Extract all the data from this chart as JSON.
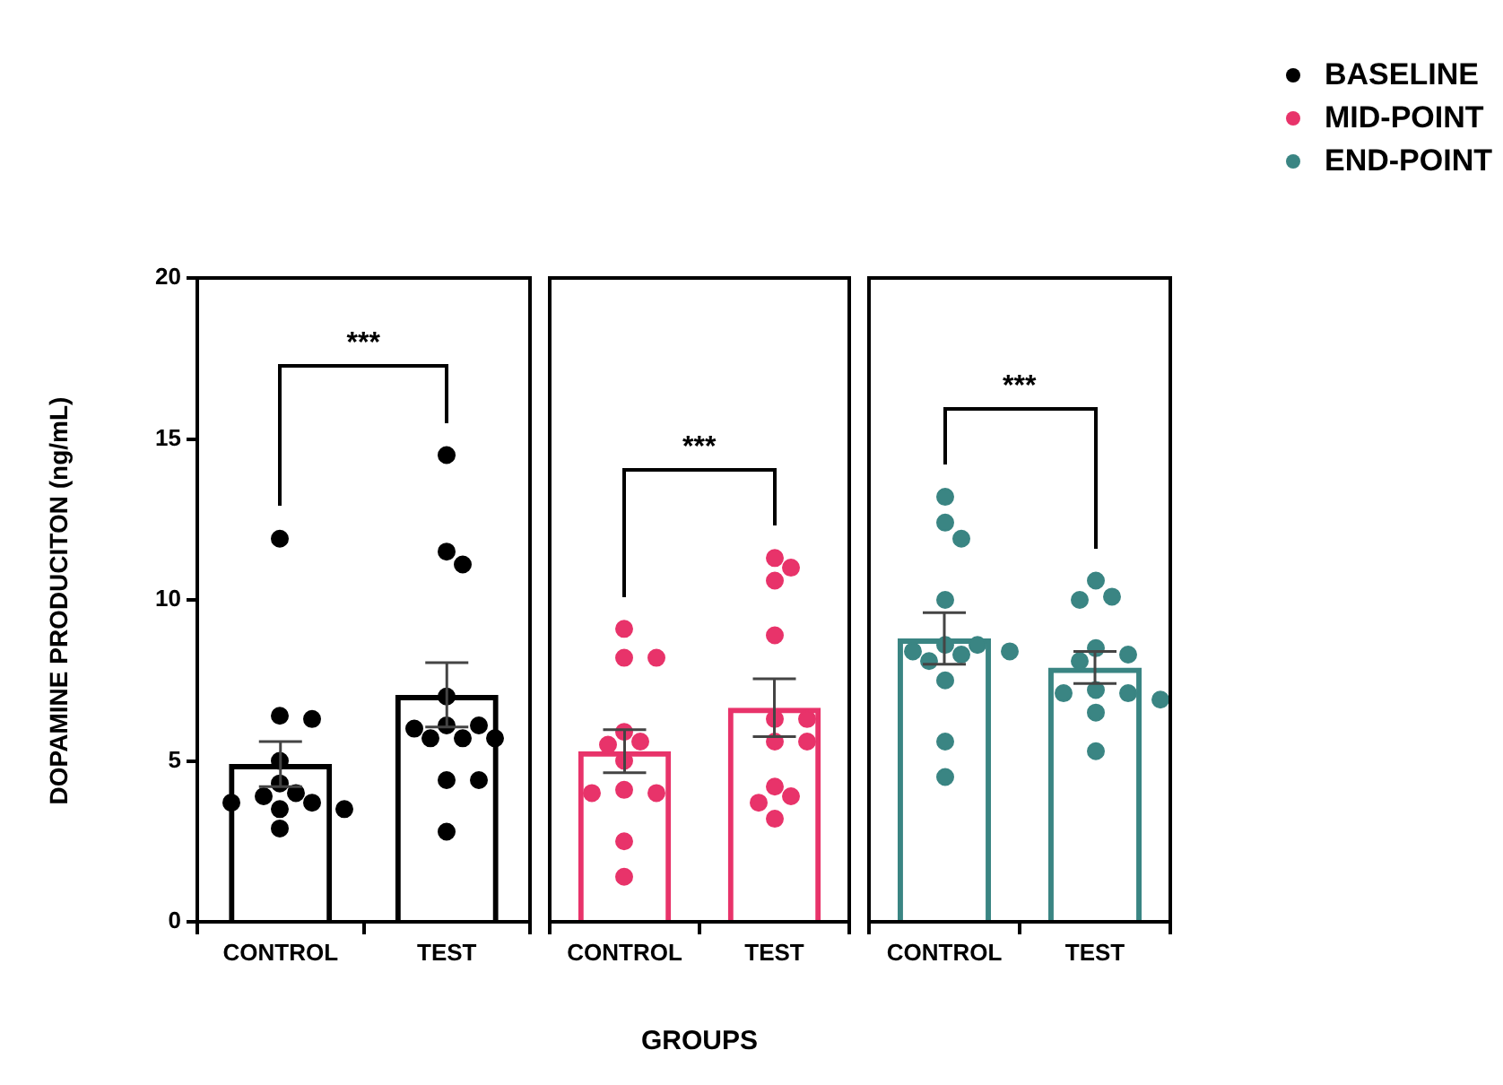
{
  "chart_data": [
    {
      "type": "bar",
      "ylabel": "DOPAMINE PRODUCITON (ng/mL)",
      "categories": [
        "CONTROL",
        "TEST"
      ],
      "ylim": [
        0,
        20
      ],
      "yticks": [
        0,
        5,
        10,
        15,
        20
      ],
      "legend": "top right",
      "annotations": [
        "***"
      ],
      "series": [
        {
          "color": "#000000",
          "values": [
            4.9,
            7.05
          ],
          "errors": [
            0.7,
            1.0
          ]
        },
        {
          "type": "scatter",
          "name": "BASELINE",
          "color": "#000000",
          "marker": "circle",
          "x": [
            "CONTROL",
            "CONTROL",
            "CONTROL",
            "CONTROL",
            "CONTROL",
            "CONTROL",
            "CONTROL",
            "CONTROL",
            "CONTROL",
            "CONTROL",
            "CONTROL",
            "CONTROL",
            "TEST",
            "TEST",
            "TEST",
            "TEST",
            "TEST",
            "TEST",
            "TEST",
            "TEST",
            "TEST",
            "TEST",
            "TEST",
            "TEST",
            "TEST"
          ],
          "values": [
            11.9,
            6.3,
            6.4,
            5.0,
            4.3,
            4.0,
            3.9,
            3.7,
            3.7,
            3.5,
            3.5,
            2.9,
            14.5,
            11.5,
            11.1,
            7.0,
            6.1,
            6.1,
            6.0,
            5.7,
            5.7,
            5.7,
            4.4,
            4.4,
            2.8
          ]
        }
      ]
    },
    {
      "type": "bar",
      "xlabel": "GROUPS",
      "categories": [
        "CONTROL",
        "TEST"
      ],
      "ylim": [
        0,
        20
      ],
      "yticks": [
        0,
        5,
        10,
        15,
        20
      ],
      "tick_labels": "x",
      "legend": "top right",
      "annotations": [
        "***"
      ],
      "series": [
        {
          "color": "#e8336a",
          "values": [
            5.3,
            6.65
          ],
          "errors": [
            0.67,
            0.9
          ]
        },
        {
          "type": "scatter",
          "name": "MID-POINT",
          "color": "#e8336a",
          "marker": "circle",
          "x": [
            "CONTROL",
            "CONTROL",
            "CONTROL",
            "CONTROL",
            "CONTROL",
            "CONTROL",
            "CONTROL",
            "CONTROL",
            "CONTROL",
            "CONTROL",
            "CONTROL",
            "CONTROL",
            "TEST",
            "TEST",
            "TEST",
            "TEST",
            "TEST",
            "TEST",
            "TEST",
            "TEST",
            "TEST",
            "TEST",
            "TEST",
            "TEST"
          ],
          "values": [
            9.1,
            8.2,
            8.2,
            5.9,
            5.6,
            5.5,
            5.0,
            4.1,
            4.0,
            4.0,
            2.5,
            1.4,
            11.3,
            11.0,
            10.6,
            8.9,
            6.3,
            6.3,
            5.6,
            5.6,
            4.2,
            3.9,
            3.7,
            3.2
          ]
        }
      ]
    },
    {
      "type": "bar",
      "categories": [
        "CONTROL",
        "TEST"
      ],
      "ylim": [
        0,
        20
      ],
      "yticks": [
        0,
        5,
        10,
        15,
        20
      ],
      "tick_labels": "x",
      "legend": "top right",
      "annotations": [
        "***"
      ],
      "series": [
        {
          "color": "#3a8583",
          "values": [
            8.8,
            7.9
          ],
          "errors": [
            0.8,
            0.5
          ]
        },
        {
          "type": "scatter",
          "name": "END-POINT",
          "color": "#3a8583",
          "marker": "circle",
          "x": [
            "CONTROL",
            "CONTROL",
            "CONTROL",
            "CONTROL",
            "CONTROL",
            "CONTROL",
            "CONTROL",
            "CONTROL",
            "CONTROL",
            "CONTROL",
            "CONTROL",
            "CONTROL",
            "CONTROL",
            "TEST",
            "TEST",
            "TEST",
            "TEST",
            "TEST",
            "TEST",
            "TEST",
            "TEST",
            "TEST",
            "TEST",
            "TEST",
            "TEST"
          ],
          "values": [
            13.2,
            12.4,
            11.9,
            10.0,
            8.6,
            8.6,
            8.4,
            8.4,
            8.3,
            8.1,
            7.5,
            5.6,
            4.5,
            10.6,
            10.1,
            10.0,
            8.5,
            8.3,
            8.1,
            7.2,
            7.1,
            7.1,
            6.9,
            6.5,
            5.3
          ]
        }
      ]
    }
  ]
}
